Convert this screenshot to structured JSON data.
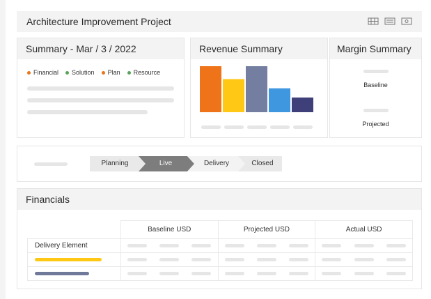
{
  "header": {
    "title": "Architecture Improvement Project",
    "icons": [
      "flag-icon",
      "list-icon",
      "money-icon"
    ]
  },
  "summary": {
    "title": "Summary - Mar / 3 / 2022",
    "legend": [
      {
        "label": "Financial",
        "color": "#e8761c"
      },
      {
        "label": "Solution",
        "color": "#5ba35b"
      },
      {
        "label": "Plan",
        "color": "#e8761c"
      },
      {
        "label": "Resource",
        "color": "#5ba35b"
      }
    ]
  },
  "revenue": {
    "title": "Revenue Summary",
    "chart_data": {
      "type": "bar",
      "values": [
        100,
        72,
        100,
        52,
        32
      ],
      "colors": [
        "#ef7318",
        "#ffc814",
        "#737ea0",
        "#3f97e0",
        "#3f3f7a"
      ],
      "ylim": [
        0,
        100
      ]
    }
  },
  "margin": {
    "title": "Margin Summary",
    "baseline_label": "Baseline",
    "projected_label": "Projected"
  },
  "pipeline": {
    "stages": [
      "Planning",
      "Live",
      "Delivery",
      "Closed"
    ],
    "active": "Live"
  },
  "financials": {
    "title": "Financials",
    "columns": [
      "Baseline USD",
      "Projected USD",
      "Actual USD"
    ],
    "row_label": "Delivery Element",
    "series_colors": [
      "#ffc814",
      "#6f7a9b"
    ]
  }
}
